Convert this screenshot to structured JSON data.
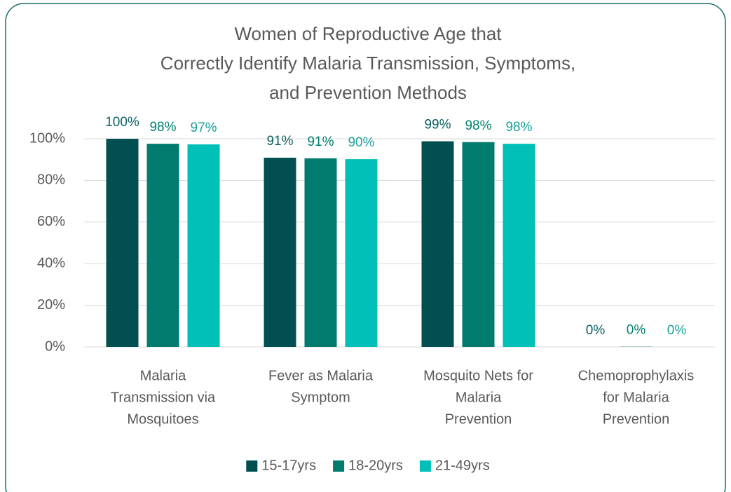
{
  "chart_data": {
    "type": "bar",
    "title": [
      "Women of Reproductive Age that",
      "Correctly Identify Malaria Transmission, Symptoms,",
      "and Prevention Methods"
    ],
    "categories": [
      [
        "Malaria",
        "Transmission via",
        "Mosquitoes"
      ],
      [
        "Fever as Malaria",
        "Symptom"
      ],
      [
        "Mosquito Nets for",
        "Malaria",
        "Prevention"
      ],
      [
        "Chemoprophylaxis",
        "for Malaria",
        "Prevention"
      ]
    ],
    "series": [
      {
        "name": "15-17yrs",
        "color": "#024f51",
        "label_color": "#0b5f60",
        "values": [
          100,
          90.9,
          98.8,
          0
        ],
        "value_labels": [
          "100%",
          "91%",
          "99%",
          "0%"
        ]
      },
      {
        "name": "18-20yrs",
        "color": "#007b6e",
        "label_color": "#00806f",
        "values": [
          97.6,
          90.6,
          98.4,
          0.1
        ],
        "value_labels": [
          "98%",
          "91%",
          "98%",
          "0%"
        ]
      },
      {
        "name": "21-49yrs",
        "color": "#00c0b8",
        "label_color": "#1aa39b",
        "values": [
          97.3,
          90.2,
          97.6,
          0
        ],
        "value_labels": [
          "97%",
          "90%",
          "98%",
          "0%"
        ]
      }
    ],
    "ylim": [
      0,
      100
    ],
    "yticks": [
      {
        "value": 0,
        "label": "0%"
      },
      {
        "value": 20,
        "label": "20%"
      },
      {
        "value": 40,
        "label": "40%"
      },
      {
        "value": 60,
        "label": "60%"
      },
      {
        "value": 80,
        "label": "80%"
      },
      {
        "value": 100,
        "label": "100%"
      }
    ],
    "grid": true,
    "legend": "bottom"
  }
}
